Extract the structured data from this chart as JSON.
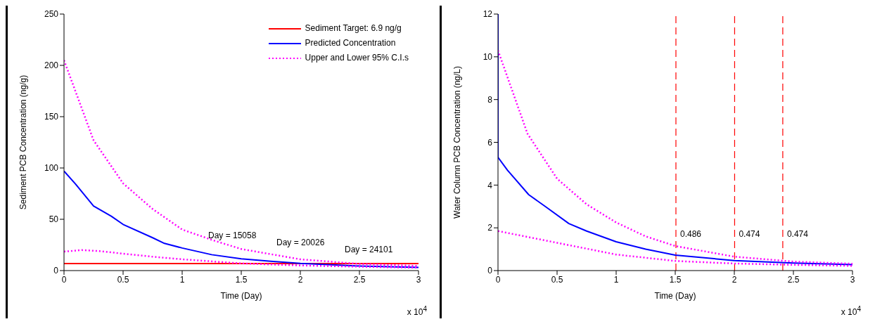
{
  "chart_data": [
    {
      "type": "line",
      "xlabel": "Time (Day)",
      "ylabel": "Sediment PCB Concentration (ng/g)",
      "xlim": [
        0,
        3
      ],
      "ylim": [
        0,
        250
      ],
      "xticks": [
        0,
        0.5,
        1,
        1.5,
        2,
        2.5,
        3
      ],
      "yticks": [
        0,
        50,
        100,
        150,
        200,
        250
      ],
      "legend": "top right",
      "marker": "none",
      "series": [
        {
          "name": "Sediment Target: 6.9 ng/g",
          "color": "#ff0000",
          "line_style": "solid",
          "x": [
            0,
            3
          ],
          "values": [
            6.9,
            6.9
          ]
        },
        {
          "name": "Predicted Concentration",
          "color": "#0000ff",
          "line_style": "solid",
          "x": [
            0,
            0.1,
            0.25,
            0.4,
            0.5,
            0.75,
            0.85,
            1,
            1.25,
            1.5,
            1.75,
            2,
            2.5,
            3
          ],
          "values": [
            97,
            84,
            63,
            53,
            45,
            32,
            26.5,
            22,
            15.5,
            11.5,
            9,
            7,
            4.5,
            3
          ]
        },
        {
          "name": "Upper and Lower 95% C.I.s",
          "color": "#ff00ff",
          "line_style": "dotted",
          "x": [
            0,
            0.25,
            0.5,
            0.75,
            1,
            1.25,
            1.5,
            2,
            2.5,
            3
          ],
          "values": [
            205,
            127,
            85,
            60,
            40,
            30,
            21,
            11,
            6.5,
            4.5
          ]
        },
        {
          "color": "#ff00ff",
          "line_style": "dotted",
          "x": [
            0,
            0.15,
            0.3,
            0.5,
            0.75,
            1,
            1.5,
            2,
            2.5,
            3
          ],
          "values": [
            18.5,
            20,
            19,
            16.5,
            13.5,
            11,
            7,
            5,
            3.8,
            2.8
          ]
        }
      ],
      "annotations": [
        "Day = 15058",
        "Day = 20026",
        "Day = 24101",
        "x 10$^{4}$"
      ]
    },
    {
      "type": "line",
      "xlabel": "Time (Day)",
      "ylabel": "Water Column PCB Concentration (ng/L)",
      "xlim": [
        0,
        3
      ],
      "ylim": [
        0,
        12
      ],
      "xticks": [
        0,
        0.5,
        1,
        1.5,
        2,
        2.5,
        3
      ],
      "yticks": [
        0,
        2,
        4,
        6,
        8,
        10,
        12
      ],
      "marker": "none",
      "series": [
        {
          "color": "#0000ff",
          "line_style": "solid",
          "x": [
            0,
            0,
            0.08,
            0.26,
            0.4,
            0.6,
            0.75,
            1,
            1.25,
            1.5,
            2,
            2.5,
            3
          ],
          "values": [
            12,
            5.3,
            4.7,
            3.55,
            3.0,
            2.2,
            1.85,
            1.35,
            1.0,
            0.72,
            0.47,
            0.35,
            0.28
          ]
        },
        {
          "color": "#ff00ff",
          "line_style": "dotted",
          "x": [
            0,
            0.25,
            0.5,
            0.75,
            1,
            1.25,
            1.5,
            2,
            2.5,
            3
          ],
          "values": [
            10.3,
            6.4,
            4.3,
            3.1,
            2.25,
            1.6,
            1.15,
            0.65,
            0.42,
            0.32
          ]
        },
        {
          "color": "#ff00ff",
          "line_style": "dotted",
          "x": [
            0,
            0.5,
            1,
            1.5,
            2,
            2.5,
            3
          ],
          "values": [
            1.85,
            1.3,
            0.75,
            0.45,
            0.33,
            0.27,
            0.22
          ]
        }
      ],
      "ref_lines": [
        {
          "axis": "x",
          "value": 1.5058,
          "color": "#ff0000",
          "line_style": "dashed"
        },
        {
          "axis": "x",
          "value": 2.0026,
          "color": "#ff0000",
          "line_style": "dashed"
        },
        {
          "axis": "x",
          "value": 2.4101,
          "color": "#ff0000",
          "line_style": "dashed"
        }
      ],
      "annotations": [
        {
          "text": "0.486",
          "x": 1.5058
        },
        {
          "text": "0.474",
          "x": 2.0026
        },
        {
          "text": "0.474",
          "x": 2.4101
        },
        "x 10$^{4}$"
      ]
    }
  ]
}
